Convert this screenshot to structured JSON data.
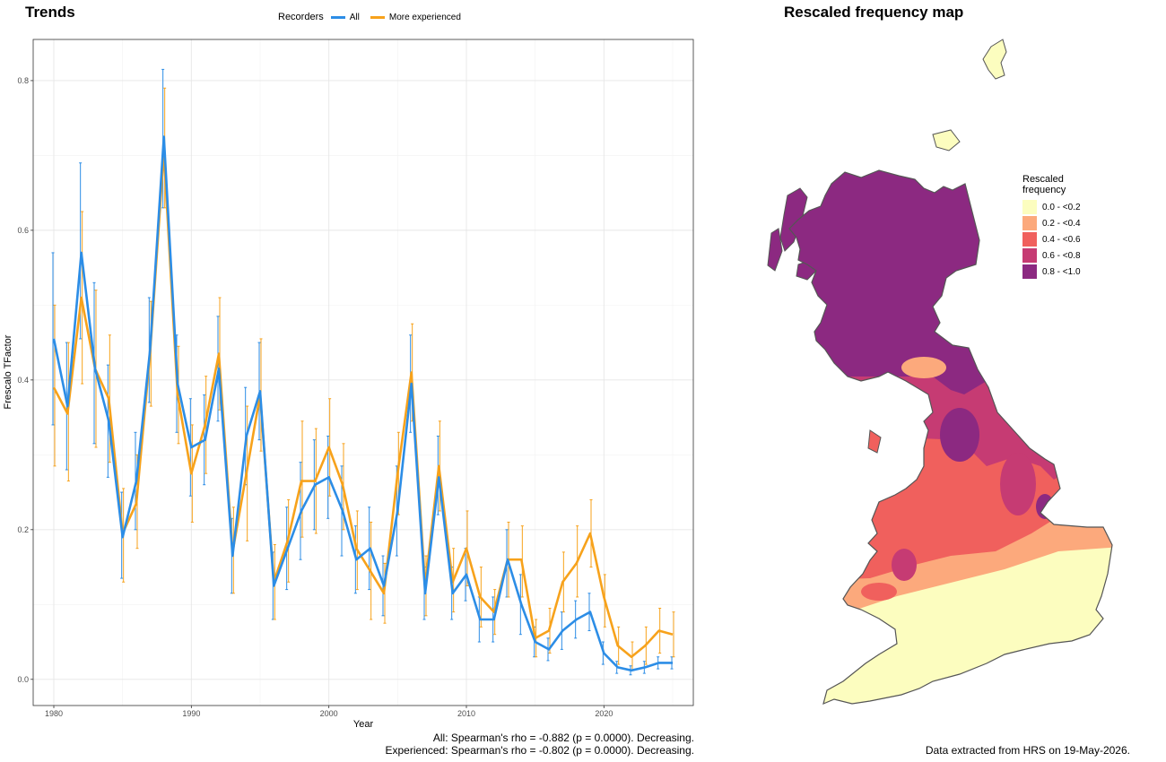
{
  "trends": {
    "title": "Trends",
    "legend_title": "Recorders",
    "footer_lines": [
      "All: Spearman's rho = -0.882 (p = 0.0000). Decreasing.",
      "Experienced: Spearman's rho = -0.802 (p = 0.0000). Decreasing."
    ]
  },
  "map": {
    "title": "Rescaled frequency map",
    "legend_title_lines": [
      "Rescaled",
      "frequency"
    ],
    "legend": [
      {
        "label": "0.0 - <0.2",
        "color": "#FCFDBF"
      },
      {
        "label": "0.2 - <0.4",
        "color": "#FCA97C"
      },
      {
        "label": "0.4 - <0.6",
        "color": "#F0605D"
      },
      {
        "label": "0.6 - <0.8",
        "color": "#C63B73"
      },
      {
        "label": "0.8 - <1.0",
        "color": "#8C2981"
      }
    ],
    "footer": "Data extracted from HRS on 19-May-2026."
  },
  "chart_data": {
    "type": "line",
    "xlabel": "Year",
    "ylabel": "Frescalo TFactor",
    "xlim": [
      1978.5,
      2026.5
    ],
    "ylim": [
      -0.035,
      0.855
    ],
    "xticks": [
      1980,
      1990,
      2000,
      2010,
      2020
    ],
    "yticks": [
      0.0,
      0.2,
      0.4,
      0.6,
      0.8
    ],
    "ytick_labels": [
      "0.0",
      "0.2",
      "0.4",
      "0.6",
      "0.8"
    ],
    "grid": true,
    "legend_position": "top",
    "x": [
      1980,
      1981,
      1982,
      1983,
      1984,
      1985,
      1986,
      1987,
      1988,
      1989,
      1990,
      1991,
      1992,
      1993,
      1994,
      1995,
      1996,
      1997,
      1998,
      1999,
      2000,
      2001,
      2002,
      2003,
      2004,
      2005,
      2006,
      2007,
      2008,
      2009,
      2010,
      2011,
      2012,
      2013,
      2014,
      2015,
      2016,
      2017,
      2018,
      2019,
      2020,
      2021,
      2022,
      2023,
      2024,
      2025
    ],
    "series": [
      {
        "name": "All",
        "color": "#2C8DE6",
        "values": [
          0.455,
          0.365,
          0.57,
          0.415,
          0.345,
          0.19,
          0.265,
          0.44,
          0.725,
          0.395,
          0.31,
          0.32,
          0.415,
          0.165,
          0.325,
          0.385,
          0.125,
          0.175,
          0.225,
          0.26,
          0.27,
          0.225,
          0.16,
          0.175,
          0.125,
          0.225,
          0.395,
          0.115,
          0.27,
          0.115,
          0.14,
          0.08,
          0.08,
          0.16,
          0.1,
          0.05,
          0.04,
          0.065,
          0.08,
          0.09,
          0.035,
          0.016,
          0.012,
          0.016,
          0.022,
          0.022
        ],
        "lower": [
          0.34,
          0.28,
          0.455,
          0.315,
          0.27,
          0.135,
          0.2,
          0.37,
          0.63,
          0.33,
          0.245,
          0.26,
          0.345,
          0.115,
          0.26,
          0.32,
          0.08,
          0.12,
          0.16,
          0.2,
          0.215,
          0.165,
          0.115,
          0.12,
          0.085,
          0.165,
          0.33,
          0.08,
          0.22,
          0.08,
          0.105,
          0.05,
          0.05,
          0.11,
          0.06,
          0.03,
          0.025,
          0.04,
          0.055,
          0.065,
          0.02,
          0.008,
          0.006,
          0.008,
          0.014,
          0.014
        ],
        "upper": [
          0.57,
          0.45,
          0.69,
          0.53,
          0.42,
          0.25,
          0.33,
          0.51,
          0.815,
          0.46,
          0.375,
          0.38,
          0.485,
          0.215,
          0.39,
          0.45,
          0.17,
          0.23,
          0.29,
          0.32,
          0.325,
          0.285,
          0.205,
          0.23,
          0.165,
          0.285,
          0.46,
          0.15,
          0.325,
          0.15,
          0.175,
          0.11,
          0.11,
          0.2,
          0.14,
          0.07,
          0.055,
          0.09,
          0.105,
          0.115,
          0.05,
          0.024,
          0.018,
          0.024,
          0.03,
          0.03
        ]
      },
      {
        "name": "More experienced",
        "color": "#F7A21B",
        "values": [
          0.39,
          0.355,
          0.51,
          0.415,
          0.375,
          0.195,
          0.235,
          0.435,
          0.705,
          0.38,
          0.275,
          0.34,
          0.435,
          0.17,
          0.275,
          0.38,
          0.13,
          0.185,
          0.265,
          0.265,
          0.31,
          0.26,
          0.175,
          0.145,
          0.115,
          0.275,
          0.41,
          0.125,
          0.285,
          0.13,
          0.175,
          0.11,
          0.09,
          0.16,
          0.16,
          0.055,
          0.065,
          0.13,
          0.155,
          0.195,
          0.11,
          0.045,
          0.03,
          0.045,
          0.065,
          0.06
        ],
        "lower": [
          0.285,
          0.265,
          0.395,
          0.31,
          0.29,
          0.13,
          0.175,
          0.365,
          0.63,
          0.315,
          0.21,
          0.275,
          0.36,
          0.115,
          0.185,
          0.305,
          0.08,
          0.13,
          0.19,
          0.195,
          0.245,
          0.2,
          0.12,
          0.08,
          0.075,
          0.22,
          0.345,
          0.085,
          0.225,
          0.09,
          0.125,
          0.07,
          0.06,
          0.11,
          0.11,
          0.03,
          0.035,
          0.09,
          0.11,
          0.15,
          0.07,
          0.02,
          0.012,
          0.02,
          0.035,
          0.03
        ],
        "upper": [
          0.5,
          0.45,
          0.625,
          0.52,
          0.46,
          0.255,
          0.3,
          0.505,
          0.79,
          0.445,
          0.34,
          0.405,
          0.51,
          0.23,
          0.365,
          0.455,
          0.18,
          0.24,
          0.345,
          0.335,
          0.375,
          0.315,
          0.225,
          0.21,
          0.155,
          0.33,
          0.475,
          0.165,
          0.345,
          0.175,
          0.225,
          0.15,
          0.12,
          0.21,
          0.205,
          0.08,
          0.095,
          0.17,
          0.205,
          0.24,
          0.14,
          0.07,
          0.05,
          0.07,
          0.095,
          0.09
        ]
      }
    ]
  }
}
